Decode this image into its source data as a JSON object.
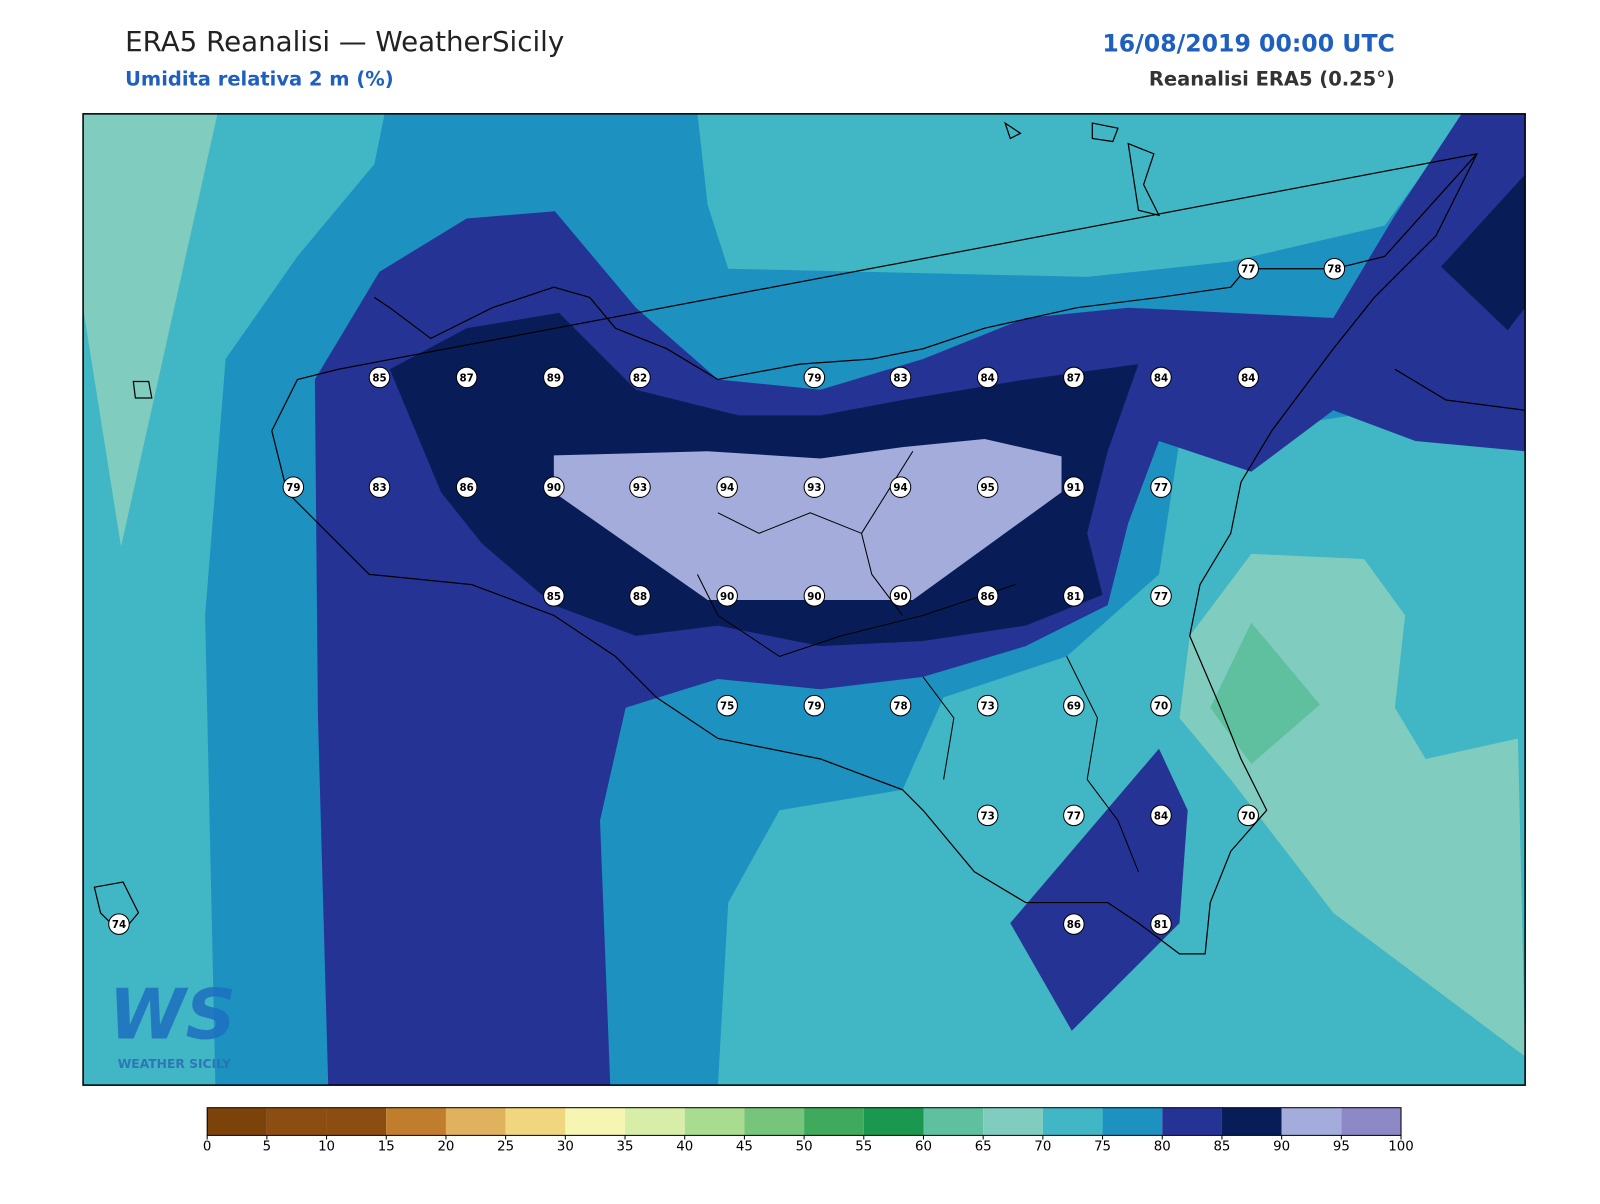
{
  "header": {
    "title": "ERA5 Reanalisi — WeatherSicily",
    "subtitle": "Umidita relativa 2 m (%)",
    "datetime": "16/08/2019 00:00 UTC",
    "source": "Reanalisi ERA5 (0.25°)"
  },
  "map": {
    "stations": [
      77,
      78,
      85,
      87,
      89,
      82,
      79,
      83,
      84,
      87,
      84,
      84,
      79,
      83,
      86,
      90,
      93,
      94,
      93,
      94,
      95,
      91,
      77,
      85,
      88,
      90,
      90,
      90,
      86,
      81,
      77,
      75,
      79,
      78,
      73,
      69,
      70,
      73,
      77,
      84,
      70,
      74,
      86,
      81
    ]
  },
  "colorbar": {
    "ticks": [
      0,
      5,
      10,
      15,
      20,
      25,
      30,
      35,
      40,
      45,
      50,
      55,
      60,
      65,
      70,
      75,
      80,
      85,
      90,
      95,
      100
    ],
    "colors": [
      "#7b430a",
      "#8c4d10",
      "#8c4d10",
      "#c07e2c",
      "#e1b25d",
      "#f0d67f",
      "#f6f6b2",
      "#d8eea8",
      "#a9dc8f",
      "#77c47b",
      "#3fa95c",
      "#1a9850",
      "#5fc0a0",
      "#80cdc0",
      "#41b6c4",
      "#1d91c0",
      "#253494",
      "#081d58",
      "#a3acdb",
      "#8d88c6"
    ]
  },
  "logo": {
    "mark": "WS",
    "name": "WEATHER SICILY"
  }
}
